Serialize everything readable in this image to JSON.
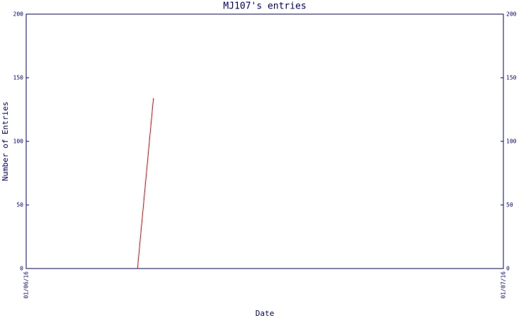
{
  "chart_data": {
    "type": "line",
    "title": "MJ107's entries",
    "xlabel": "Date",
    "ylabel": "Number of Entries",
    "x": [
      "08/06/16",
      "09/06/16"
    ],
    "series": [
      {
        "name": "MJ107",
        "color": "#ff0000",
        "values": [
          0,
          134
        ]
      }
    ],
    "xlim": [
      "01/06/16",
      "01/07/16"
    ],
    "xticks": [
      "01/06/16",
      "01/07/16"
    ],
    "ylim": [
      0,
      200
    ],
    "yticks": [
      0,
      50,
      100,
      150,
      200
    ],
    "axis_color": "#000080",
    "grid": false
  }
}
